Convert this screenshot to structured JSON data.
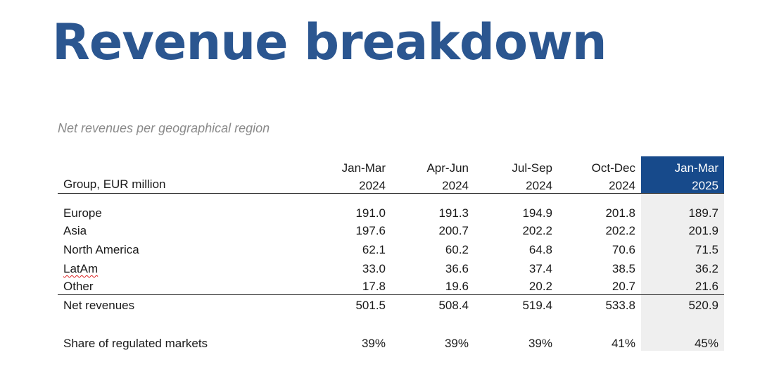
{
  "title": "Revenue breakdown",
  "subtitle": "Net revenues per geographical region",
  "table": {
    "row_header": "Group, EUR million",
    "columns": [
      {
        "period": "Jan-Mar",
        "year": "2024",
        "highlight": false
      },
      {
        "period": "Apr-Jun",
        "year": "2024",
        "highlight": false
      },
      {
        "period": "Jul-Sep",
        "year": "2024",
        "highlight": false
      },
      {
        "period": "Oct-Dec",
        "year": "2024",
        "highlight": false
      },
      {
        "period": "Jan-Mar",
        "year": "2025",
        "highlight": true
      }
    ],
    "rows": [
      {
        "label": "Europe",
        "values": [
          "191.0",
          "191.3",
          "194.9",
          "201.8",
          "189.7"
        ]
      },
      {
        "label": "Asia",
        "values": [
          "197.6",
          "200.7",
          "202.2",
          "202.2",
          "201.9"
        ]
      },
      {
        "label": "North America",
        "values": [
          "62.1",
          "60.2",
          "64.8",
          "70.6",
          "71.5"
        ]
      },
      {
        "label": "LatAm",
        "values": [
          "33.0",
          "36.6",
          "37.4",
          "38.5",
          "36.2"
        ]
      },
      {
        "label": "Other",
        "values": [
          "17.8",
          "19.6",
          "20.2",
          "20.7",
          "21.6"
        ]
      }
    ],
    "total": {
      "label": "Net revenues",
      "values": [
        "501.5",
        "508.4",
        "519.4",
        "533.8",
        "520.9"
      ]
    },
    "share": {
      "label": "Share of regulated markets",
      "values": [
        "39%",
        "39%",
        "39%",
        "41%",
        "45%"
      ]
    }
  },
  "colors": {
    "title": "#2b5690",
    "highlight_header": "#174a8b",
    "highlight_column": "#efefef"
  }
}
